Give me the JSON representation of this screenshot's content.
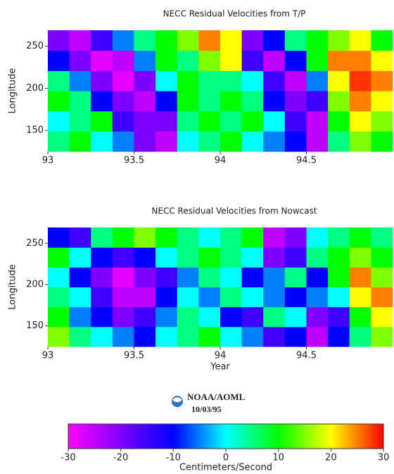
{
  "chart_data": [
    {
      "type": "heatmap",
      "title": "NECC Residual Velocities from T/P",
      "ylabel": "Longitude",
      "xbins": [
        93,
        93.125,
        93.25,
        93.375,
        93.5,
        93.625,
        93.75,
        93.875,
        94,
        94.125,
        94.25,
        94.375,
        94.5,
        94.625,
        94.75,
        94.875,
        95
      ],
      "ybins": [
        125,
        149,
        173,
        197,
        221,
        245,
        269
      ],
      "xlim": [
        93,
        95
      ],
      "ylim": [
        125,
        269
      ],
      "xticks": [
        93,
        93.5,
        94,
        94.5
      ],
      "yticks": [
        150,
        200,
        250
      ],
      "values": [
        [
          5,
          10,
          0,
          -5,
          -20,
          -25,
          0,
          5,
          10,
          0,
          -5,
          -10,
          -25,
          5,
          15,
          10
        ],
        [
          0,
          5,
          10,
          -15,
          -20,
          -20,
          5,
          10,
          5,
          10,
          0,
          -15,
          -25,
          10,
          20,
          15
        ],
        [
          10,
          5,
          -10,
          -20,
          -25,
          -10,
          10,
          5,
          10,
          5,
          -10,
          -20,
          -15,
          15,
          25,
          20
        ],
        [
          5,
          -5,
          -20,
          -28,
          -20,
          0,
          10,
          5,
          5,
          0,
          -15,
          -25,
          -5,
          20,
          28,
          25
        ],
        [
          -10,
          -20,
          -28,
          -25,
          -5,
          10,
          5,
          15,
          20,
          -15,
          -25,
          -10,
          10,
          25,
          25,
          20
        ],
        [
          -20,
          -25,
          -15,
          -5,
          5,
          10,
          15,
          25,
          20,
          -20,
          -10,
          5,
          10,
          15,
          20,
          10
        ]
      ]
    },
    {
      "type": "heatmap",
      "title": "NECC Residual Velocities from Nowcast",
      "ylabel": "Longitude",
      "xlabel": "Year",
      "xbins": [
        93,
        93.125,
        93.25,
        93.375,
        93.5,
        93.625,
        93.75,
        93.875,
        94,
        94.125,
        94.25,
        94.375,
        94.5,
        94.625,
        94.75,
        94.875,
        95
      ],
      "ybins": [
        125,
        149,
        173,
        197,
        221,
        245,
        269
      ],
      "xlim": [
        93,
        95
      ],
      "ylim": [
        125,
        269
      ],
      "xticks": [
        93,
        93.5,
        94,
        94.5
      ],
      "yticks": [
        150,
        200,
        250
      ],
      "values": [
        [
          15,
          5,
          0,
          -5,
          -10,
          0,
          5,
          10,
          0,
          -5,
          -15,
          -10,
          -25,
          -10,
          5,
          15
        ],
        [
          10,
          -5,
          -10,
          -20,
          -15,
          -5,
          5,
          0,
          -10,
          -15,
          5,
          0,
          -20,
          -15,
          10,
          20
        ],
        [
          5,
          0,
          -15,
          -25,
          -25,
          -10,
          0,
          -5,
          5,
          0,
          -5,
          -10,
          -5,
          0,
          20,
          25
        ],
        [
          0,
          -10,
          -20,
          -28,
          -20,
          -15,
          -5,
          5,
          0,
          -10,
          -5,
          5,
          -10,
          10,
          25,
          15
        ],
        [
          10,
          0,
          -10,
          -15,
          -10,
          0,
          5,
          10,
          5,
          0,
          -20,
          -15,
          5,
          10,
          15,
          10
        ],
        [
          -10,
          -15,
          5,
          10,
          15,
          10,
          5,
          0,
          5,
          10,
          -25,
          -20,
          0,
          5,
          10,
          5
        ]
      ]
    }
  ],
  "colorbar": {
    "label": "Centimeters/Second",
    "clim": [
      -30,
      30
    ],
    "ticks": [
      -30,
      -20,
      -10,
      0,
      10,
      20,
      30
    ],
    "colors": [
      "#ff00ff",
      "#8000ff",
      "#0000ff",
      "#00ffff",
      "#00ff00",
      "#ffff00",
      "#ff0000"
    ]
  },
  "footer": {
    "org": "NOAA/AOML",
    "date": "10/03/95"
  }
}
